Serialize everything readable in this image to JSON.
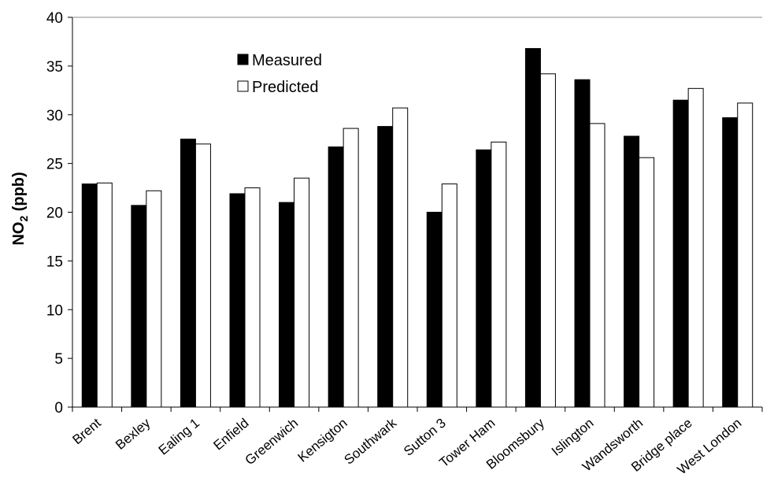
{
  "chart_data": {
    "type": "bar",
    "categories": [
      "Brent",
      "Bexley",
      "Ealing 1",
      "Enfield",
      "Greenwich",
      "Kensigton",
      "Southwark",
      "Sutton 3",
      "Tower Ham",
      "Bloomsbury",
      "Islington",
      "Wandsworth",
      "Bridge place",
      "West London"
    ],
    "series": [
      {
        "name": "Measured",
        "color": "#000000",
        "values": [
          22.9,
          20.7,
          27.5,
          21.9,
          21.0,
          26.7,
          28.8,
          20.0,
          26.4,
          36.8,
          33.6,
          27.8,
          31.5,
          29.7
        ]
      },
      {
        "name": "Predicted",
        "color": "#ffffff",
        "values": [
          23.0,
          22.2,
          27.0,
          22.5,
          23.5,
          28.6,
          30.7,
          22.9,
          27.2,
          34.2,
          29.1,
          25.6,
          32.7,
          31.2
        ]
      }
    ],
    "ylabel": {
      "main": "NO",
      "sub": "2",
      "unit": " (ppb)"
    },
    "ylim": [
      0,
      40
    ],
    "yticks": [
      0,
      5,
      10,
      15,
      20,
      25,
      30,
      35,
      40
    ],
    "grid": false,
    "legend_position": "top-left-inside"
  }
}
